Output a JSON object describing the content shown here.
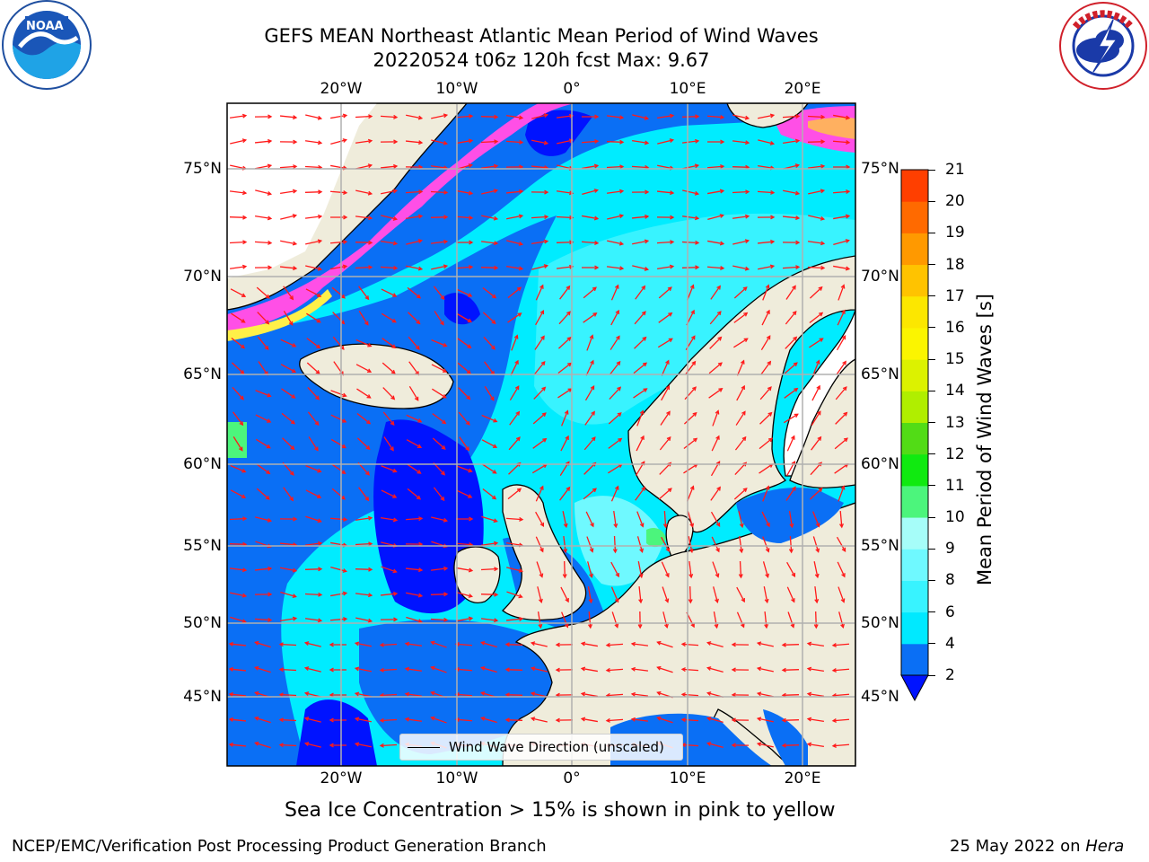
{
  "title_line1": "GEFS MEAN Northeast Atlantic Mean Period of Wind Waves",
  "title_line2": "20220524 t06z 120h fcst   Max: 9.67",
  "caption": "Sea Ice Concentration > 15% is shown in pink to yellow",
  "footer_left": "NCEP/EMC/Verification Post Processing Product Generation Branch",
  "footer_date": "25 May 2022 on ",
  "footer_machine": "Hera",
  "legend_label": "Wind Wave Direction (unscaled)",
  "lon_labels": [
    "20°W",
    "10°W",
    "0°",
    "10°E",
    "20°E"
  ],
  "lat_labels": [
    "75°N",
    "70°N",
    "65°N",
    "60°N",
    "55°N",
    "50°N",
    "45°N"
  ],
  "colorbar": {
    "label": "Mean Period of Wind Waves [s]",
    "ticks": [
      "2",
      "4",
      "6",
      "8",
      "9",
      "10",
      "11",
      "12",
      "13",
      "14",
      "15",
      "16",
      "17",
      "18",
      "19",
      "20",
      "21"
    ],
    "colors": [
      "#0a6ff5",
      "#00e9ff",
      "#38f3ff",
      "#6ff9ff",
      "#a6fdf9",
      "#4cf57c",
      "#10ea10",
      "#52dc16",
      "#b0ee00",
      "#dcf200",
      "#fbf500",
      "#fce700",
      "#ffc300",
      "#ff9900",
      "#ff6a00",
      "#ff3f00",
      "#ff1400"
    ],
    "under_color": "#0013ff"
  },
  "colors": {
    "land": "#efecdb",
    "ocean_base": "#00ecff",
    "arrow": "#ff1a1a"
  }
}
